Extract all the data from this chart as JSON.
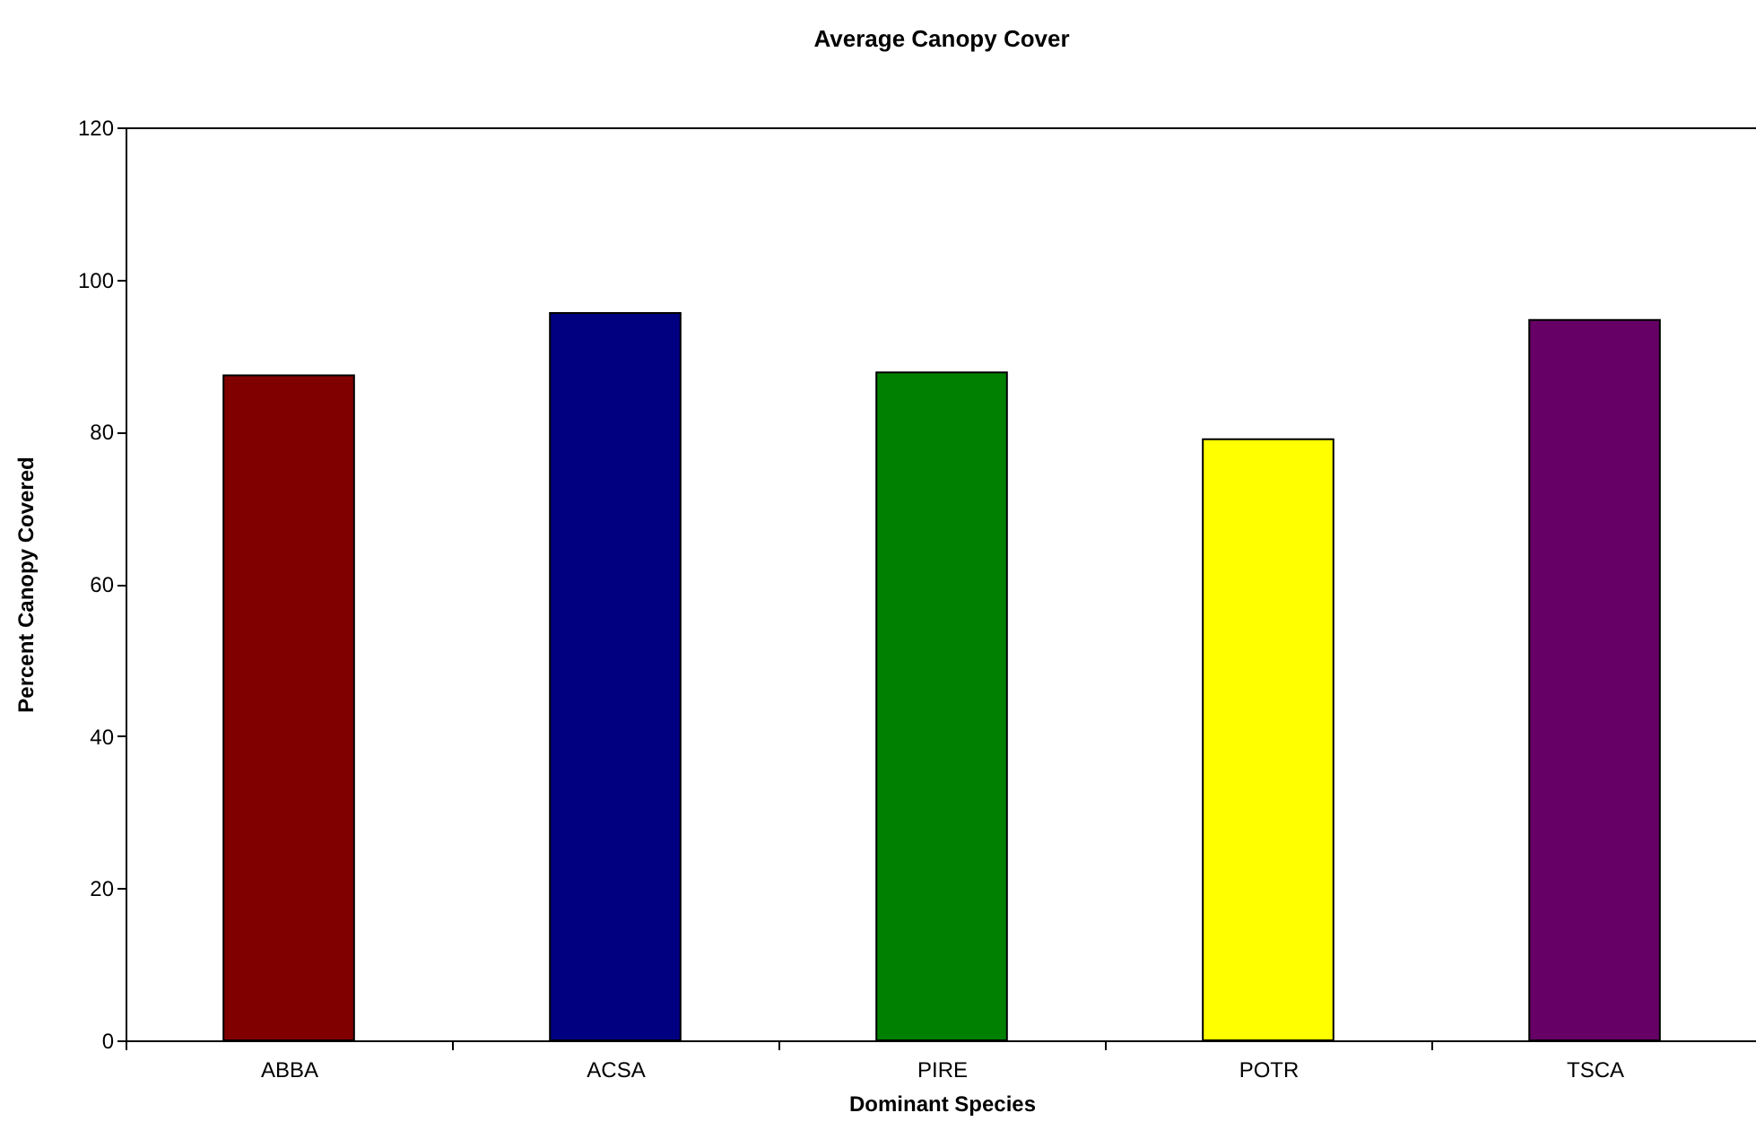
{
  "chart_data": {
    "type": "bar",
    "title": "Average Canopy Cover",
    "xlabel": "Dominant Species",
    "ylabel": "Percent Canopy Covered",
    "categories": [
      "ABBA",
      "ACSA",
      "PIRE",
      "POTR",
      "TSCA"
    ],
    "values": [
      87.4,
      95.6,
      87.8,
      79.0,
      94.7
    ],
    "colors": [
      "#800000",
      "#000080",
      "#008000",
      "#ffff00",
      "#660066"
    ],
    "ylim": [
      0,
      120
    ],
    "yticks": [
      0,
      20,
      40,
      60,
      80,
      100,
      120
    ],
    "grid": false
  }
}
